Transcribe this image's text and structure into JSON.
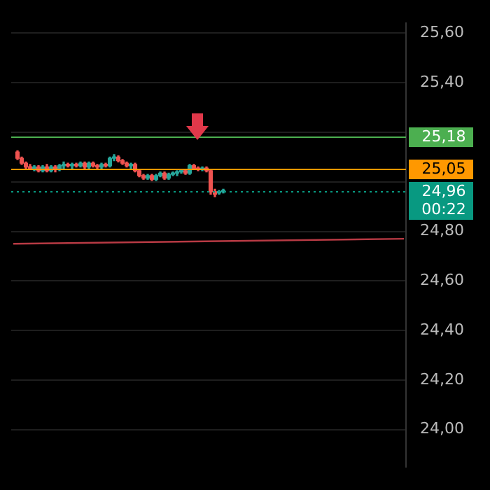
{
  "chart_data": {
    "type": "candlestick",
    "categories": [
      null,
      null,
      null,
      null,
      null,
      null,
      null,
      null,
      null,
      null,
      null,
      null,
      null,
      null,
      null,
      null,
      null,
      null,
      null,
      null,
      null,
      null,
      null,
      null,
      null,
      null,
      null,
      null,
      null,
      null,
      null,
      null,
      null,
      null,
      null,
      null,
      null,
      null,
      null,
      null,
      null,
      null,
      null,
      null,
      null,
      null,
      null,
      null,
      null,
      null,
      null,
      null,
      null,
      null,
      null,
      null,
      null,
      null,
      null,
      null,
      null,
      null,
      null,
      null,
      null,
      null,
      null,
      null,
      null,
      null,
      null,
      null,
      null,
      null,
      null,
      null,
      null,
      null,
      null,
      null,
      null,
      null,
      null,
      null,
      null,
      null,
      null,
      null,
      null,
      null,
      null,
      null,
      null,
      null
    ],
    "ohlc": [
      null,
      [
        25.12,
        25.125,
        25.09,
        25.095
      ],
      [
        25.095,
        25.1,
        25.07,
        25.075
      ],
      [
        25.075,
        25.08,
        25.055,
        25.06
      ],
      [
        25.06,
        25.07,
        25.05,
        25.055
      ],
      [
        25.05,
        25.065,
        25.045,
        25.06
      ],
      [
        25.06,
        25.065,
        25.04,
        25.045
      ],
      [
        25.045,
        25.065,
        25.04,
        25.06
      ],
      [
        25.06,
        25.07,
        25.04,
        25.045
      ],
      [
        25.045,
        25.065,
        25.04,
        25.06
      ],
      [
        25.06,
        25.065,
        25.04,
        25.05
      ],
      [
        25.05,
        25.07,
        25.045,
        25.065
      ],
      [
        25.065,
        25.08,
        25.055,
        25.07
      ],
      [
        25.07,
        25.075,
        25.06,
        25.065
      ],
      [
        25.065,
        25.075,
        25.055,
        25.07
      ],
      [
        25.07,
        25.075,
        25.06,
        25.065
      ],
      [
        25.065,
        25.08,
        25.06,
        25.075
      ],
      [
        25.075,
        25.08,
        25.055,
        25.06
      ],
      [
        25.06,
        25.08,
        25.055,
        25.075
      ],
      [
        25.075,
        25.08,
        25.06,
        25.065
      ],
      [
        25.065,
        25.07,
        25.055,
        25.06
      ],
      [
        25.06,
        25.075,
        25.055,
        25.07
      ],
      [
        25.07,
        25.075,
        25.06,
        25.065
      ],
      [
        25.065,
        25.1,
        25.06,
        25.095
      ],
      [
        25.095,
        25.11,
        25.085,
        25.1
      ],
      [
        25.1,
        25.105,
        25.08,
        25.085
      ],
      [
        25.085,
        25.09,
        25.07,
        25.075
      ],
      [
        25.075,
        25.08,
        25.06,
        25.065
      ],
      [
        25.065,
        25.075,
        25.055,
        25.07
      ],
      [
        25.07,
        25.075,
        25.04,
        25.045
      ],
      [
        25.045,
        25.05,
        25.02,
        25.025
      ],
      [
        25.025,
        25.03,
        25.01,
        25.015
      ],
      [
        25.015,
        25.03,
        25.01,
        25.025
      ],
      [
        25.025,
        25.03,
        25.005,
        25.01
      ],
      [
        25.01,
        25.03,
        25.005,
        25.025
      ],
      [
        25.025,
        25.04,
        25.02,
        25.035
      ],
      [
        25.035,
        25.04,
        25.01,
        25.015
      ],
      [
        25.015,
        25.035,
        25.01,
        25.03
      ],
      [
        25.03,
        25.04,
        25.025,
        25.035
      ],
      [
        25.035,
        25.045,
        25.025,
        25.04
      ],
      [
        25.04,
        25.05,
        25.035,
        25.045
      ],
      [
        25.045,
        25.05,
        25.03,
        25.035
      ],
      [
        25.035,
        25.07,
        25.03,
        25.065
      ],
      [
        25.065,
        25.07,
        25.05,
        25.055
      ],
      [
        25.055,
        25.06,
        25.045,
        25.05
      ],
      [
        25.05,
        25.06,
        25.045,
        25.055
      ],
      [
        25.055,
        25.06,
        25.04,
        25.045
      ],
      [
        25.045,
        25.05,
        24.95,
        24.96
      ],
      [
        24.96,
        24.97,
        24.94,
        24.95
      ],
      [
        24.955,
        24.965,
        24.95,
        24.96
      ],
      [
        24.96,
        24.97,
        24.955,
        24.965
      ],
      null,
      null,
      null,
      null,
      null,
      null,
      null,
      null,
      null,
      null,
      null,
      null,
      null,
      null,
      null,
      null,
      null,
      null,
      null,
      null,
      null,
      null,
      null,
      null,
      null,
      null,
      null,
      null,
      null,
      null,
      null,
      null,
      null,
      null,
      null,
      null,
      null,
      null,
      null,
      null,
      null,
      null,
      null
    ],
    "colors": [
      null,
      "#ef5350",
      "#ef5350",
      "#ef5350",
      "#ef5350",
      "#26a69a",
      "#ef5350",
      "#26a69a",
      "#ef5350",
      "#26a69a",
      "#ef5350",
      "#26a69a",
      "#26a69a",
      "#ef5350",
      "#26a69a",
      "#ef5350",
      "#26a69a",
      "#ef5350",
      "#26a69a",
      "#ef5350",
      "#ef5350",
      "#26a69a",
      "#ef5350",
      "#26a69a",
      "#26a69a",
      "#ef5350",
      "#ef5350",
      "#ef5350",
      "#26a69a",
      "#ef5350",
      "#ef5350",
      "#ef5350",
      "#26a69a",
      "#ef5350",
      "#26a69a",
      "#26a69a",
      "#ef5350",
      "#26a69a",
      "#26a69a",
      "#26a69a",
      "#26a69a",
      "#ef5350",
      "#26a69a",
      "#ef5350",
      "#ef5350",
      "#26a69a",
      "#ef5350",
      "#ef5350",
      "#ef5350",
      "#26a69a",
      "#26a69a",
      null,
      null,
      null,
      null,
      null,
      null,
      null,
      null,
      null,
      null,
      null,
      null,
      null,
      null,
      null,
      null,
      null,
      null,
      null,
      null,
      null,
      null,
      null,
      null,
      null,
      null,
      null,
      null,
      null,
      null,
      null,
      null,
      null,
      null,
      null,
      null,
      null,
      null,
      null,
      null,
      null,
      null,
      null
    ],
    "series": [
      {
        "type": "line",
        "color": "#b83a44",
        "values": [
          24.75,
          null,
          null,
          null,
          null,
          null,
          null,
          null,
          null,
          null,
          null,
          null,
          null,
          null,
          null,
          null,
          null,
          null,
          null,
          null,
          null,
          null,
          null,
          null,
          null,
          null,
          null,
          null,
          null,
          null,
          null,
          null,
          null,
          null,
          null,
          null,
          null,
          null,
          null,
          null,
          null,
          null,
          null,
          null,
          null,
          null,
          null,
          null,
          null,
          null,
          null,
          null,
          null,
          null,
          null,
          null,
          null,
          null,
          null,
          null,
          null,
          null,
          null,
          null,
          null,
          null,
          null,
          null,
          null,
          null,
          null,
          null,
          null,
          null,
          null,
          null,
          null,
          null,
          null,
          null,
          null,
          null,
          null,
          null,
          null,
          null,
          null,
          null,
          null,
          null,
          null,
          null,
          null,
          24.77
        ]
      }
    ],
    "ylim": [
      23.85,
      25.64
    ],
    "yticks": [
      {
        "value": 24.0,
        "label": "24,00"
      },
      {
        "value": 24.2,
        "label": "24,20"
      },
      {
        "value": 24.4,
        "label": "24,40"
      },
      {
        "value": 24.6,
        "label": "24,60"
      },
      {
        "value": 24.8,
        "label": "24,80"
      },
      {
        "value": 25.0,
        "label": null
      },
      {
        "value": 25.2,
        "label": null
      },
      {
        "value": 25.4,
        "label": "25,40"
      },
      {
        "value": 25.6,
        "label": "25,60"
      }
    ],
    "ref_lines": [
      {
        "axis": "y",
        "value": 25.18,
        "label": "25,18",
        "color": "#4caf50",
        "line_style": "solid"
      },
      {
        "axis": "y",
        "value": 25.05,
        "label": "25,05",
        "color": "#ff9800",
        "line_style": "solid"
      },
      {
        "axis": "y",
        "value": 24.96,
        "label": "24,96",
        "color": "#089981",
        "line_style": "dotted"
      }
    ],
    "annotations": [
      "00:22"
    ],
    "grid": "y",
    "legend": false
  }
}
